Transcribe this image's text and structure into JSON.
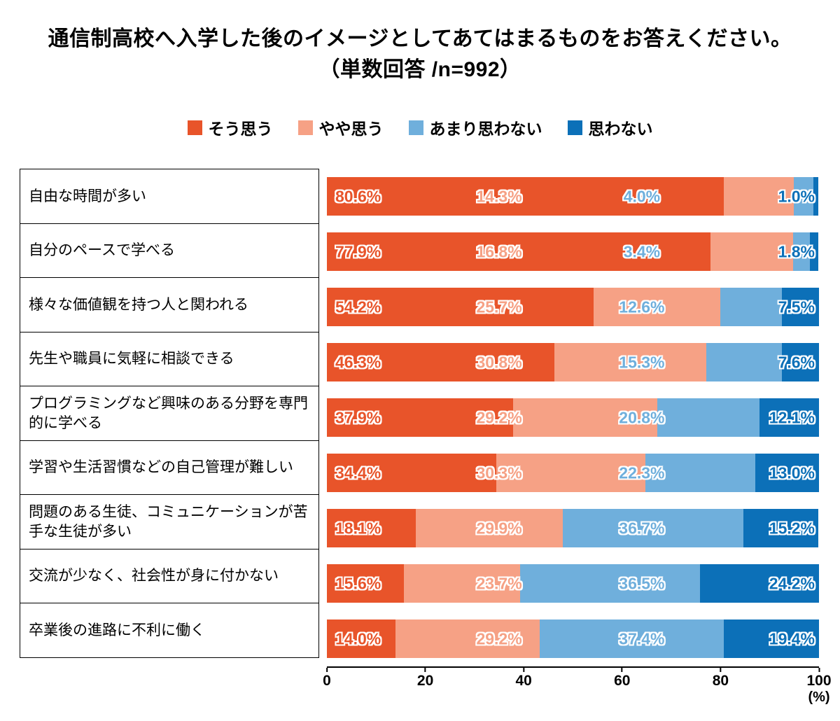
{
  "title": {
    "line1": "通信制高校へ入学した後のイメージとしてあてはまるものをお答えください。",
    "line2": "（単数回答 /n=992）"
  },
  "chart_data": {
    "type": "bar",
    "orientation": "horizontal",
    "stacked": true,
    "legend_position": "top",
    "title": "通信制高校へ入学した後のイメージとしてあてはまるものをお答えください。（単数回答 /n=992）",
    "categories": [
      "自由な時間が多い",
      "自分のペースで学べる",
      "様々な価値観を持つ人と関われる",
      "先生や職員に気軽に相談できる",
      "プログラミングなど興味のある分野を専門的に学べる",
      "学習や生活習慣などの自己管理が難しい",
      "問題のある生徒、コミュニケーションが苦手な生徒が多い",
      "交流が少なく、社会性が身に付かない",
      "卒業後の進路に不利に働く"
    ],
    "series": [
      {
        "name": "そう思う",
        "color": "#e8542a",
        "values": [
          80.6,
          77.9,
          54.2,
          46.3,
          37.9,
          34.4,
          18.1,
          15.6,
          14.0
        ]
      },
      {
        "name": "やや思う",
        "color": "#f6a185",
        "values": [
          14.3,
          16.8,
          25.7,
          30.8,
          29.2,
          30.3,
          29.9,
          23.7,
          29.2
        ]
      },
      {
        "name": "あまり思わない",
        "color": "#6fafdc",
        "values": [
          4.0,
          3.4,
          12.6,
          15.3,
          20.8,
          22.3,
          36.7,
          36.5,
          37.4
        ]
      },
      {
        "name": "思わない",
        "color": "#0c70b8",
        "values": [
          1.0,
          1.8,
          7.5,
          7.6,
          12.1,
          13.0,
          15.2,
          24.2,
          19.4
        ]
      }
    ],
    "xlim": [
      0,
      100
    ],
    "x_ticks": [
      0,
      20,
      40,
      60,
      80,
      100
    ],
    "x_unit_label": "(%)",
    "value_suffix": "%"
  }
}
